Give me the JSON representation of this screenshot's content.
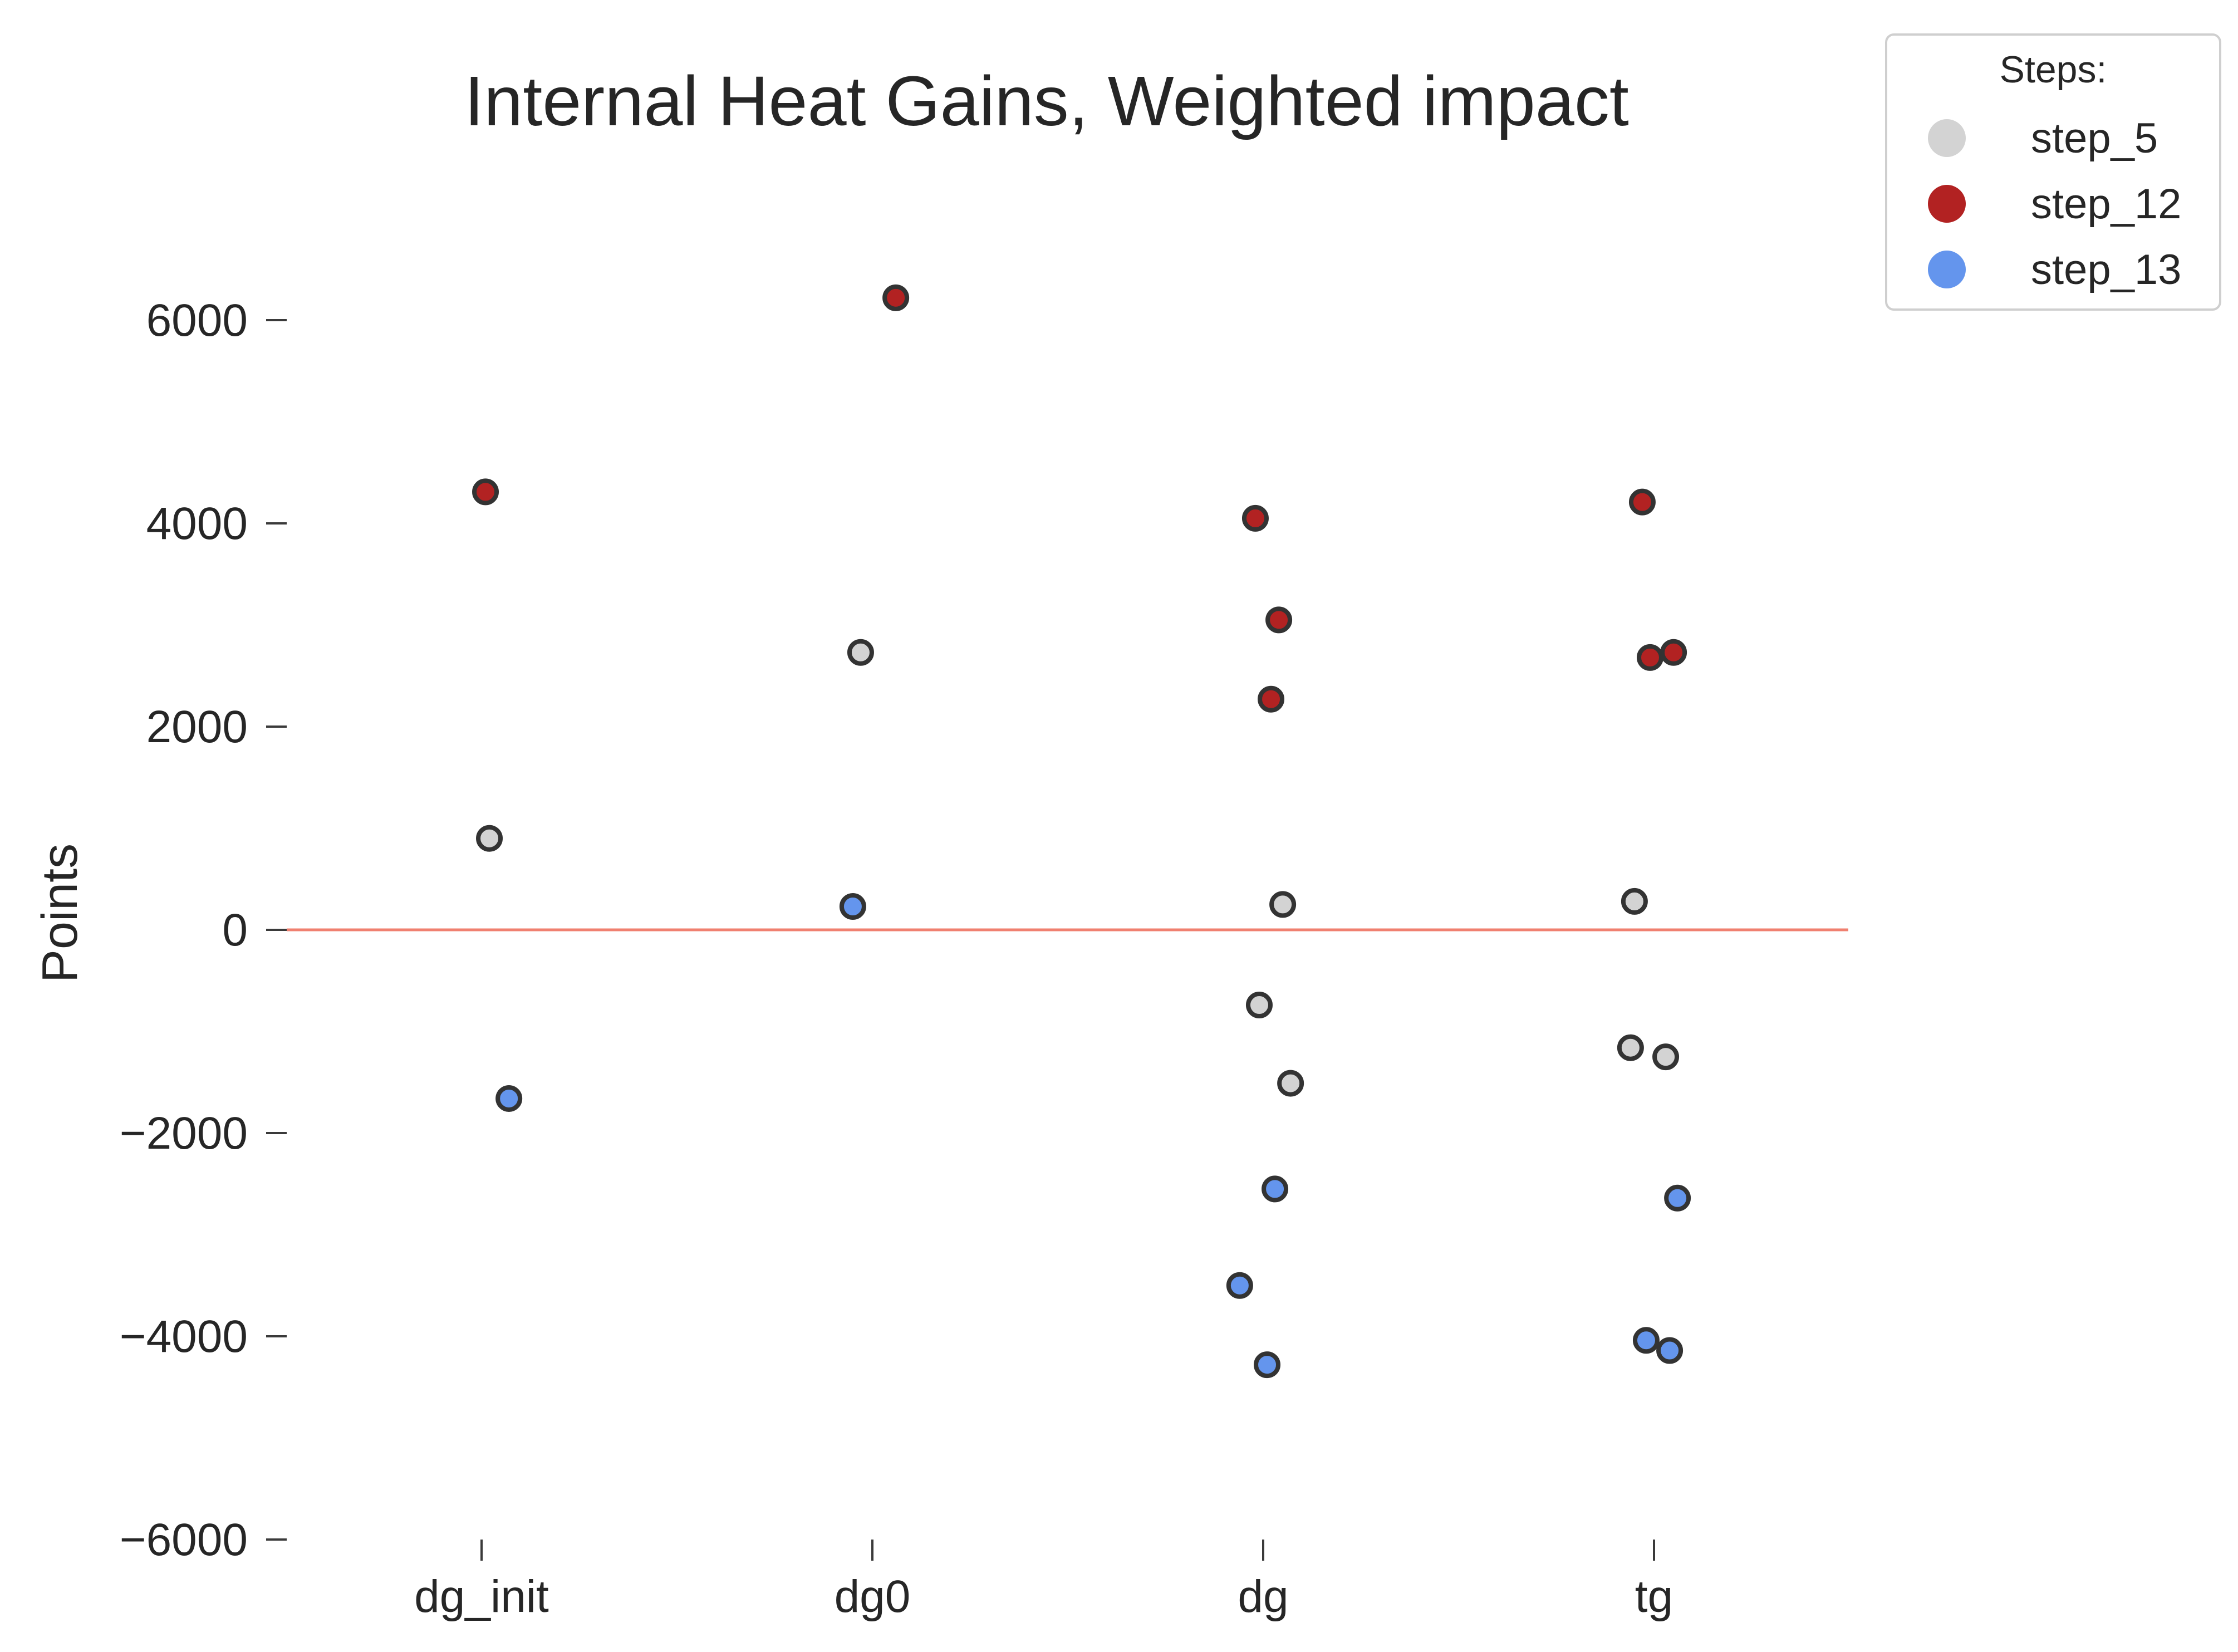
{
  "chart_data": {
    "type": "scatter",
    "title": "Internal Heat Gains, Weighted impact",
    "xlabel": "",
    "ylabel": "Points",
    "categories": [
      "dg_init",
      "dg0",
      "dg",
      "tg"
    ],
    "ylim": [
      -6000,
      6000
    ],
    "yticks": [
      6000,
      4000,
      2000,
      0,
      -2000,
      -4000,
      -6000
    ],
    "ytick_labels": [
      "6000",
      "4000",
      "2000",
      "0",
      "−2000",
      "−4000",
      "−6000"
    ],
    "reference_line": {
      "y": 0,
      "color": "#f08070"
    },
    "grid": false,
    "legend": {
      "title": "Steps:",
      "placement": "top-right, outside plot"
    },
    "series": [
      {
        "name": "step_5",
        "color": "#d3d3d3",
        "points": [
          {
            "category": "dg_init",
            "y": 900
          },
          {
            "category": "dg0",
            "y": 2730
          },
          {
            "category": "dg",
            "y": 250
          },
          {
            "category": "dg",
            "y": -740
          },
          {
            "category": "dg",
            "y": -1510
          },
          {
            "category": "tg",
            "y": 280
          },
          {
            "category": "tg",
            "y": -1250
          },
          {
            "category": "tg",
            "y": -1160
          }
        ]
      },
      {
        "name": "step_12",
        "color": "#b22222",
        "points": [
          {
            "category": "dg_init",
            "y": 4310
          },
          {
            "category": "dg0",
            "y": 6220
          },
          {
            "category": "dg",
            "y": 4050
          },
          {
            "category": "dg",
            "y": 3050
          },
          {
            "category": "dg",
            "y": 2270
          },
          {
            "category": "tg",
            "y": 4210
          },
          {
            "category": "tg",
            "y": 2730
          },
          {
            "category": "tg",
            "y": 2680
          }
        ]
      },
      {
        "name": "step_13",
        "color": "#6495ed",
        "points": [
          {
            "category": "dg_init",
            "y": -1660
          },
          {
            "category": "dg0",
            "y": 230
          },
          {
            "category": "dg",
            "y": -2550
          },
          {
            "category": "dg",
            "y": -3500
          },
          {
            "category": "dg",
            "y": -4280
          },
          {
            "category": "tg",
            "y": -2640
          },
          {
            "category": "tg",
            "y": -4040
          },
          {
            "category": "tg",
            "y": -4140
          }
        ]
      }
    ]
  }
}
